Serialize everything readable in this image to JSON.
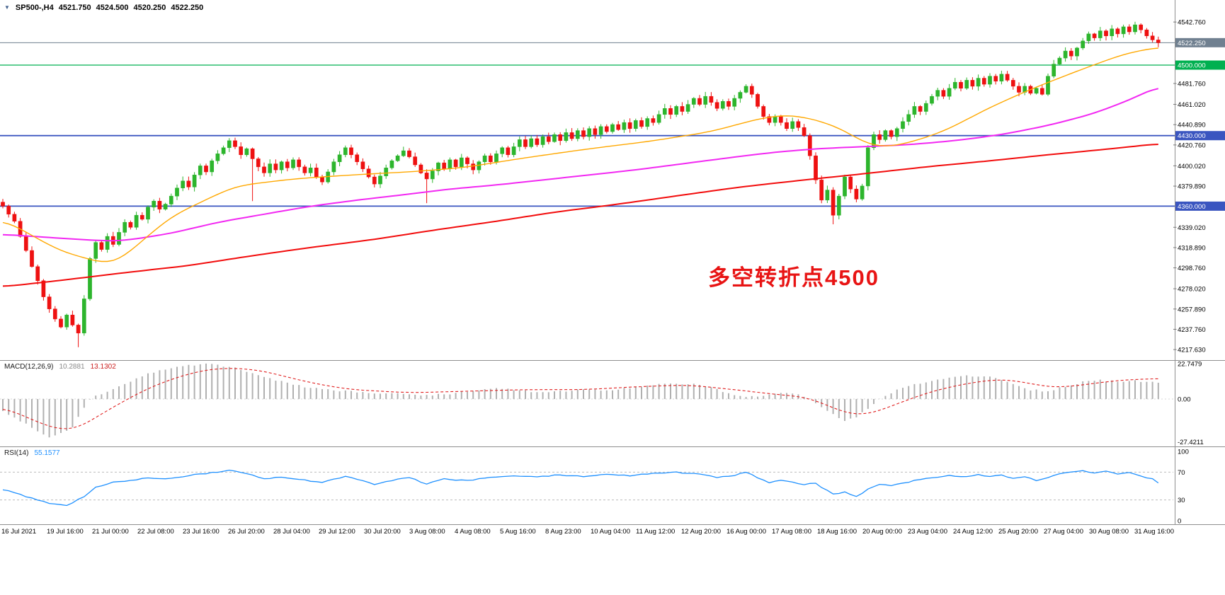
{
  "header": {
    "symbol": "SP500-,H4",
    "open": "4521.750",
    "high": "4524.500",
    "low": "4520.250",
    "close": "4522.250"
  },
  "annotation": {
    "text": "多空转折点4500",
    "color": "#e81414"
  },
  "indicators": {
    "macd": {
      "label": "MACD(12,26,9)",
      "value1": "10.2881",
      "value2": "13.1302"
    },
    "rsi": {
      "label": "RSI(14)",
      "value": "55.1577"
    }
  },
  "chart_data": {
    "type": "candlestick",
    "title": "SP500-,H4",
    "timeframe": "H4",
    "x_range": [
      "16 Jul 2021",
      "31 Aug 2021"
    ],
    "colors": {
      "up": "#2db52d",
      "down": "#ee1111",
      "ma_fast": "#ffa800",
      "ma_mid": "#f228f2",
      "ma_slow": "#f20c0c",
      "macd_hist": "#b0b0b0",
      "macd_signal": "#e02020",
      "rsi": "#1e90ff"
    },
    "price_axis": {
      "min": 4210,
      "max": 4559,
      "ticks": [
        "4542.760",
        "4481.760",
        "4461.020",
        "4440.890",
        "4420.760",
        "4400.020",
        "4379.890",
        "4339.020",
        "4318.890",
        "4298.760",
        "4278.020",
        "4257.890",
        "4237.760",
        "4217.630"
      ]
    },
    "levels": [
      {
        "price": 4500.0,
        "label": "4500.000",
        "color": "#00b050"
      },
      {
        "price": 4430.0,
        "label": "4430.000",
        "color": "#3a55c0"
      },
      {
        "price": 4360.0,
        "label": "4360.000",
        "color": "#3a55c0"
      }
    ],
    "current_price": {
      "value": 4522.25,
      "label": "4522.250",
      "color": "#708090"
    },
    "closes": [
      4360,
      4352,
      4345,
      4330,
      4316,
      4300,
      4286,
      4270,
      4258,
      4248,
      4240,
      4252,
      4242,
      4234,
      4268,
      4308,
      4324,
      4317,
      4330,
      4322,
      4334,
      4344,
      4339,
      4351,
      4347,
      4359,
      4365,
      4357,
      4362,
      4370,
      4378,
      4385,
      4379,
      4391,
      4400,
      4394,
      4405,
      4412,
      4418,
      4425,
      4419,
      4411,
      4417,
      4407,
      4399,
      4393,
      4402,
      4396,
      4404,
      4398,
      4406,
      4399,
      4393,
      4398,
      4389,
      4384,
      4394,
      4404,
      4411,
      4418,
      4411,
      4404,
      4397,
      4389,
      4382,
      4390,
      4398,
      4405,
      4410,
      4415,
      4409,
      4401,
      4393,
      4387,
      4395,
      4403,
      4397,
      4406,
      4399,
      4408,
      4402,
      4396,
      4404,
      4410,
      4404,
      4412,
      4418,
      4411,
      4419,
      4426,
      4419,
      4427,
      4421,
      4429,
      4424,
      4431,
      4425,
      4433,
      4427,
      4435,
      4429,
      4437,
      4431,
      4439,
      4434,
      4441,
      4436,
      4443,
      4437,
      4445,
      4439,
      4447,
      4443,
      4451,
      4457,
      4451,
      4459,
      4454,
      4461,
      4467,
      4461,
      4469,
      4463,
      4457,
      4464,
      4459,
      4467,
      4473,
      4479,
      4471,
      4459,
      4449,
      4443,
      4449,
      4443,
      4437,
      4444,
      4438,
      4430,
      4410,
      4386,
      4366,
      4376,
      4351,
      4370,
      4389,
      4377,
      4367,
      4380,
      4418,
      4431,
      4426,
      4435,
      4429,
      4437,
      4444,
      4451,
      4459,
      4454,
      4462,
      4469,
      4475,
      4469,
      4477,
      4483,
      4477,
      4485,
      4479,
      4487,
      4481,
      4489,
      4484,
      4491,
      4485,
      4479,
      4473,
      4479,
      4472,
      4477,
      4471,
      4489,
      4501,
      4507,
      4514,
      4509,
      4517,
      4524,
      4531,
      4527,
      4534,
      4529,
      4536,
      4531,
      4538,
      4533,
      4540,
      4535,
      4529,
      4525,
      4522.25
    ],
    "wick_overrides": {
      "13": [
        null,
        4220
      ],
      "43": [
        null,
        4365
      ],
      "73": [
        null,
        4363
      ],
      "128": [
        4481,
        null
      ],
      "143": [
        null,
        4342
      ],
      "195": [
        4543,
        null
      ]
    },
    "ma_fast": [
      [
        0,
        4347
      ],
      [
        10,
        4315
      ],
      [
        19,
        4301
      ],
      [
        29,
        4350
      ],
      [
        40,
        4380
      ],
      [
        50,
        4387
      ],
      [
        60,
        4391
      ],
      [
        70,
        4394
      ],
      [
        79,
        4398
      ],
      [
        90,
        4408
      ],
      [
        101,
        4417
      ],
      [
        111,
        4424
      ],
      [
        122,
        4434
      ],
      [
        131,
        4448
      ],
      [
        136,
        4451
      ],
      [
        143,
        4441
      ],
      [
        150,
        4418
      ],
      [
        155,
        4421
      ],
      [
        162,
        4434
      ],
      [
        170,
        4458
      ],
      [
        177,
        4476
      ],
      [
        185,
        4494
      ],
      [
        193,
        4511
      ],
      [
        199,
        4518
      ]
    ],
    "ma_mid": [
      [
        0,
        4332
      ],
      [
        13,
        4327
      ],
      [
        20,
        4325
      ],
      [
        29,
        4333
      ],
      [
        37,
        4344
      ],
      [
        45,
        4352
      ],
      [
        53,
        4360
      ],
      [
        61,
        4366
      ],
      [
        70,
        4372
      ],
      [
        77,
        4377
      ],
      [
        85,
        4381
      ],
      [
        93,
        4386
      ],
      [
        101,
        4391
      ],
      [
        109,
        4396
      ],
      [
        117,
        4402
      ],
      [
        125,
        4408
      ],
      [
        132,
        4413
      ],
      [
        140,
        4417
      ],
      [
        148,
        4419
      ],
      [
        156,
        4421
      ],
      [
        164,
        4425
      ],
      [
        172,
        4431
      ],
      [
        180,
        4440
      ],
      [
        188,
        4452
      ],
      [
        196,
        4470
      ],
      [
        199,
        4480
      ]
    ],
    "ma_slow": [
      [
        0,
        4280
      ],
      [
        11,
        4287
      ],
      [
        21,
        4294
      ],
      [
        32,
        4301
      ],
      [
        42,
        4310
      ],
      [
        53,
        4319
      ],
      [
        64,
        4327
      ],
      [
        74,
        4336
      ],
      [
        85,
        4345
      ],
      [
        95,
        4354
      ],
      [
        106,
        4362
      ],
      [
        117,
        4371
      ],
      [
        127,
        4379
      ],
      [
        138,
        4386
      ],
      [
        148,
        4392
      ],
      [
        159,
        4399
      ],
      [
        170,
        4405
      ],
      [
        180,
        4411
      ],
      [
        191,
        4417
      ],
      [
        199,
        4422
      ]
    ],
    "macd": {
      "axis_labels": [
        "22.7479",
        "0.00",
        "-27.4211"
      ],
      "axis_values": [
        22.7479,
        0,
        -27.4211
      ],
      "current": [
        10.2881,
        13.1302
      ],
      "histogram_anchors": [
        [
          0,
          -8
        ],
        [
          4,
          -16
        ],
        [
          8,
          -25
        ],
        [
          12,
          -18
        ],
        [
          15,
          0
        ],
        [
          20,
          8
        ],
        [
          25,
          16
        ],
        [
          30,
          21
        ],
        [
          35,
          22.5
        ],
        [
          40,
          20
        ],
        [
          45,
          14
        ],
        [
          50,
          9
        ],
        [
          55,
          6
        ],
        [
          60,
          5
        ],
        [
          64,
          3
        ],
        [
          68,
          4
        ],
        [
          72,
          2
        ],
        [
          76,
          3
        ],
        [
          80,
          5
        ],
        [
          85,
          7
        ],
        [
          88,
          6
        ],
        [
          92,
          4
        ],
        [
          96,
          5
        ],
        [
          100,
          6
        ],
        [
          104,
          5
        ],
        [
          108,
          7
        ],
        [
          112,
          9
        ],
        [
          116,
          10
        ],
        [
          120,
          9
        ],
        [
          124,
          5
        ],
        [
          127,
          2
        ],
        [
          130,
          1
        ],
        [
          133,
          3
        ],
        [
          136,
          4
        ],
        [
          139,
          0
        ],
        [
          141,
          -5
        ],
        [
          143,
          -10
        ],
        [
          145,
          -14
        ],
        [
          147,
          -12
        ],
        [
          149,
          -6
        ],
        [
          151,
          0
        ],
        [
          154,
          6
        ],
        [
          158,
          10
        ],
        [
          162,
          13
        ],
        [
          166,
          15
        ],
        [
          170,
          14
        ],
        [
          174,
          10
        ],
        [
          177,
          6
        ],
        [
          180,
          5
        ],
        [
          183,
          8
        ],
        [
          186,
          11
        ],
        [
          189,
          12
        ],
        [
          192,
          11
        ],
        [
          195,
          12
        ],
        [
          197,
          11
        ],
        [
          199,
          10.29
        ]
      ],
      "signal_anchors": [
        [
          0,
          -5
        ],
        [
          8,
          -18
        ],
        [
          12,
          -21
        ],
        [
          15,
          -14
        ],
        [
          20,
          -3
        ],
        [
          25,
          7
        ],
        [
          30,
          14
        ],
        [
          35,
          19
        ],
        [
          40,
          20
        ],
        [
          45,
          18
        ],
        [
          50,
          13
        ],
        [
          55,
          9
        ],
        [
          60,
          6
        ],
        [
          70,
          4
        ],
        [
          80,
          5
        ],
        [
          90,
          6
        ],
        [
          100,
          6
        ],
        [
          110,
          8
        ],
        [
          118,
          9
        ],
        [
          126,
          6
        ],
        [
          133,
          3
        ],
        [
          139,
          1
        ],
        [
          143,
          -6
        ],
        [
          147,
          -11
        ],
        [
          150,
          -9
        ],
        [
          154,
          -3
        ],
        [
          160,
          5
        ],
        [
          166,
          10
        ],
        [
          172,
          13
        ],
        [
          177,
          10
        ],
        [
          181,
          7
        ],
        [
          186,
          9
        ],
        [
          192,
          12
        ],
        [
          199,
          13.13
        ]
      ]
    },
    "rsi": {
      "axis_labels": [
        "100",
        "70",
        "30",
        "0"
      ],
      "levels": [
        70,
        30
      ],
      "current": 55.1577,
      "anchors": [
        [
          0,
          45
        ],
        [
          4,
          35
        ],
        [
          8,
          25
        ],
        [
          11,
          22
        ],
        [
          14,
          35
        ],
        [
          16,
          48
        ],
        [
          19,
          55
        ],
        [
          22,
          58
        ],
        [
          25,
          62
        ],
        [
          28,
          60
        ],
        [
          31,
          64
        ],
        [
          34,
          67
        ],
        [
          37,
          70
        ],
        [
          39,
          73
        ],
        [
          42,
          68
        ],
        [
          45,
          60
        ],
        [
          48,
          63
        ],
        [
          51,
          60
        ],
        [
          55,
          55
        ],
        [
          59,
          64
        ],
        [
          62,
          58
        ],
        [
          64,
          52
        ],
        [
          67,
          58
        ],
        [
          70,
          62
        ],
        [
          73,
          53
        ],
        [
          76,
          60
        ],
        [
          80,
          58
        ],
        [
          84,
          62
        ],
        [
          88,
          65
        ],
        [
          92,
          63
        ],
        [
          96,
          66
        ],
        [
          100,
          64
        ],
        [
          104,
          67
        ],
        [
          108,
          65
        ],
        [
          112,
          68
        ],
        [
          116,
          70
        ],
        [
          120,
          67
        ],
        [
          123,
          62
        ],
        [
          126,
          65
        ],
        [
          128,
          70
        ],
        [
          130,
          62
        ],
        [
          132,
          55
        ],
        [
          134,
          58
        ],
        [
          136,
          56
        ],
        [
          138,
          52
        ],
        [
          140,
          54
        ],
        [
          141,
          48
        ],
        [
          143,
          38
        ],
        [
          145,
          42
        ],
        [
          147,
          35
        ],
        [
          149,
          45
        ],
        [
          151,
          52
        ],
        [
          153,
          50
        ],
        [
          155,
          54
        ],
        [
          157,
          58
        ],
        [
          160,
          62
        ],
        [
          163,
          65
        ],
        [
          166,
          63
        ],
        [
          168,
          66
        ],
        [
          170,
          64
        ],
        [
          172,
          66
        ],
        [
          174,
          61
        ],
        [
          176,
          63
        ],
        [
          178,
          58
        ],
        [
          180,
          62
        ],
        [
          182,
          68
        ],
        [
          184,
          70
        ],
        [
          186,
          72
        ],
        [
          188,
          69
        ],
        [
          190,
          71
        ],
        [
          192,
          67
        ],
        [
          194,
          70
        ],
        [
          196,
          65
        ],
        [
          198,
          60
        ],
        [
          199,
          55.16
        ]
      ]
    },
    "time_axis": {
      "labels": [
        "16 Jul 2021",
        "19 Jul 16:00",
        "21 Jul 00:00",
        "22 Jul 08:00",
        "23 Jul 16:00",
        "26 Jul 20:00",
        "28 Jul 04:00",
        "29 Jul 12:00",
        "30 Jul 20:00",
        "3 Aug 08:00",
        "4 Aug 08:00",
        "5 Aug 16:00",
        "8 Aug 23:00",
        "10 Aug 04:00",
        "11 Aug 12:00",
        "12 Aug 20:00",
        "16 Aug 00:00",
        "17 Aug 08:00",
        "18 Aug 16:00",
        "20 Aug 00:00",
        "23 Aug 04:00",
        "24 Aug 12:00",
        "25 Aug 20:00",
        "27 Aug 04:00",
        "30 Aug 08:00",
        "31 Aug 16:00"
      ]
    }
  }
}
